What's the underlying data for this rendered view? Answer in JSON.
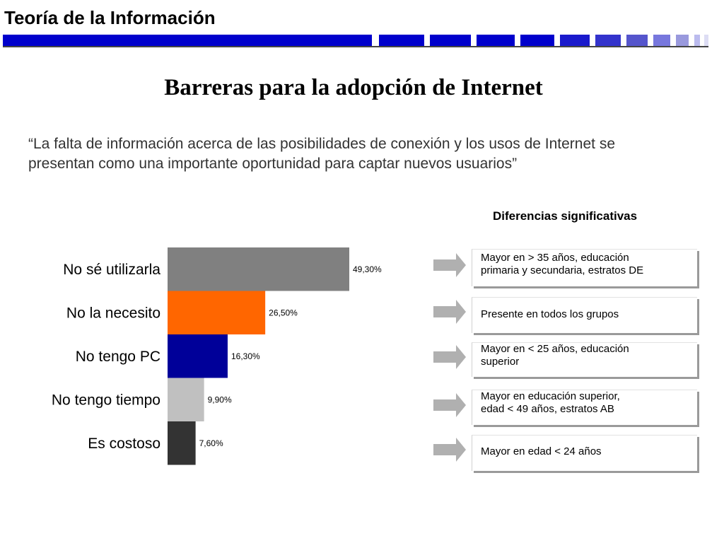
{
  "header": {
    "title": "Teoría de la Información"
  },
  "slide": {
    "title": "Barreras para la adopción de Internet",
    "quote_line1": "“La falta de información acerca de las posibilidades de conexión y los usos de Internet se",
    "quote_line2": "presentan como una importante oportunidad para captar nuevos usuarios”"
  },
  "differences": {
    "heading": "Diferencias significativas",
    "items": [
      {
        "line1": "Mayor en > 35 años, educación",
        "line2": "primaria y secundaria, estratos DE"
      },
      {
        "line1": "Presente en todos los grupos",
        "line2": ""
      },
      {
        "line1": "Mayor en < 25 años, educación",
        "line2": "superior"
      },
      {
        "line1": "Mayor en educación superior,",
        "line2": "edad < 49 años, estratos AB"
      },
      {
        "line1": "Mayor en edad < 24 años",
        "line2": ""
      }
    ]
  },
  "colors": {
    "header_bar": "#0000cc",
    "arrow": "#b0b0b0",
    "box_shadow": "#9a9a9a"
  },
  "chart_data": {
    "type": "bar",
    "orientation": "horizontal",
    "categories": [
      "No sé utilizarla",
      "No la necesito",
      "No tengo PC",
      "No tengo tiempo",
      "Es costoso"
    ],
    "values": [
      49.3,
      26.5,
      16.3,
      9.9,
      7.6
    ],
    "value_labels": [
      "49,30%",
      "26,50%",
      "16,30%",
      "9,90%",
      "7,60%"
    ],
    "colors": [
      "#808080",
      "#ff6600",
      "#000099",
      "#c0c0c0",
      "#333333"
    ],
    "xlim": [
      0,
      49.3
    ],
    "grid": false,
    "legend": "none"
  }
}
